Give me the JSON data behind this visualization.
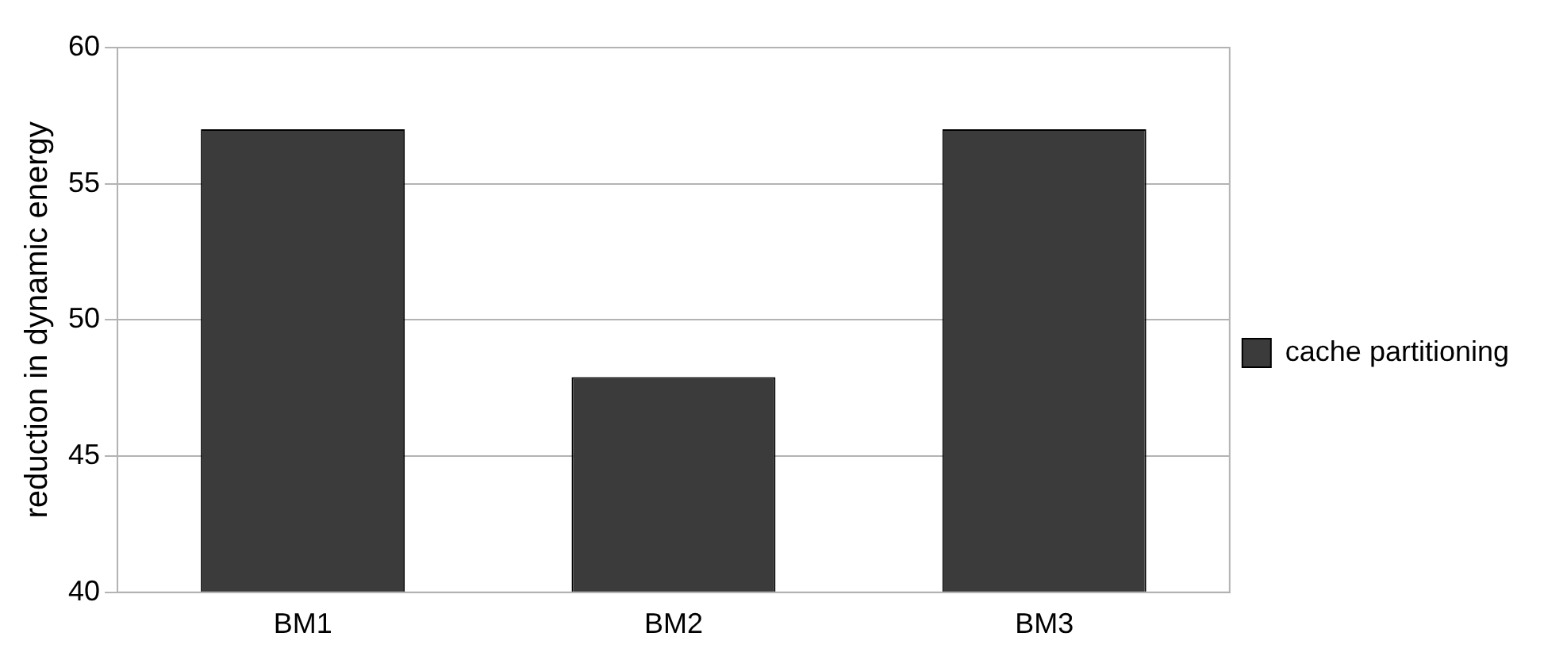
{
  "chart_data": {
    "type": "bar",
    "ylabel": "reduction in dynamic energy",
    "categories": [
      "BM1",
      "BM2",
      "BM3"
    ],
    "series": [
      {
        "name": "cache partitioning",
        "color": "#3b3b3b",
        "values": [
          57,
          47.9,
          57
        ]
      }
    ],
    "ylim": [
      40,
      60
    ],
    "yticks": [
      40,
      45,
      50,
      55,
      60
    ],
    "grid": "y",
    "legend": "right"
  }
}
